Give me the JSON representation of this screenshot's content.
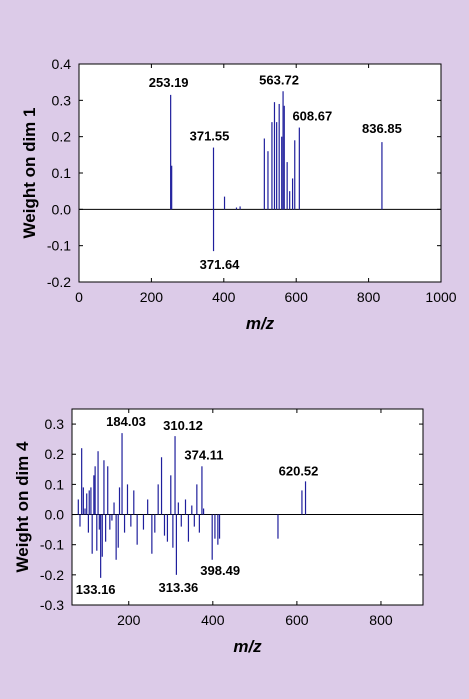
{
  "colors": {
    "background": "#dccbe8",
    "series": "#1f1f9c",
    "axis": "#000000",
    "plot_bg": "#ffffff"
  },
  "chart_data": [
    {
      "type": "bar",
      "title": "",
      "xlabel": "m/z",
      "ylabel": "Weight on dim 1",
      "xlim": [
        0,
        1000
      ],
      "ylim": [
        -0.2,
        0.4
      ],
      "xticks": [
        0,
        200,
        400,
        600,
        800,
        1000
      ],
      "yticks": [
        -0.2,
        -0.1,
        0,
        0.1,
        0.2,
        0.3,
        0.4
      ],
      "grid": false,
      "series": [
        {
          "x": [
            253.19,
            256,
            371.55,
            371.64,
            402,
            435,
            445,
            512,
            522,
            533,
            540,
            546,
            553,
            560,
            563.72,
            567,
            575,
            582,
            590,
            596,
            608.67,
            836.85
          ],
          "values": [
            0.315,
            0.12,
            0.17,
            -0.115,
            0.035,
            0.005,
            0.008,
            0.195,
            0.16,
            0.24,
            0.295,
            0.24,
            0.29,
            0.2,
            0.325,
            0.285,
            0.13,
            0.05,
            0.085,
            0.19,
            0.225,
            0.185
          ]
        }
      ],
      "annotations": [
        {
          "text": "253.19",
          "x": 253.19,
          "y": 0.315
        },
        {
          "text": "371.55",
          "x": 371.55,
          "y": 0.17
        },
        {
          "text": "371.64",
          "x": 371.64,
          "y": -0.115
        },
        {
          "text": "563.72",
          "x": 563.72,
          "y": 0.325
        },
        {
          "text": "608.67",
          "x": 608.67,
          "y": 0.225
        },
        {
          "text": "836.85",
          "x": 836.85,
          "y": 0.185
        }
      ]
    },
    {
      "type": "bar",
      "title": "",
      "xlabel": "m/z",
      "ylabel": "Weight on dim 4",
      "xlim": [
        65,
        900
      ],
      "ylim": [
        -0.3,
        0.35
      ],
      "xticks": [
        200,
        400,
        600,
        800
      ],
      "yticks": [
        -0.3,
        -0.2,
        -0.1,
        0,
        0.1,
        0.2,
        0.3
      ],
      "grid": false,
      "series": [
        {
          "x": [
            80,
            84,
            88,
            92,
            96,
            100,
            104,
            106,
            110,
            113,
            117,
            120,
            124,
            127,
            130,
            133.16,
            137,
            141,
            145,
            150,
            155,
            160,
            165,
            170,
            175,
            178,
            184.03,
            190,
            197,
            205,
            212,
            220,
            235,
            245,
            255,
            262,
            270,
            278,
            285,
            292,
            300,
            305,
            310.12,
            313.36,
            318,
            325,
            335,
            342,
            350,
            356,
            362,
            368,
            374.11,
            378,
            398.49,
            405,
            412,
            416,
            555,
            612,
            620.52
          ],
          "values": [
            0.05,
            -0.04,
            0.22,
            0.09,
            0.02,
            0.07,
            -0.06,
            0.08,
            0.09,
            -0.13,
            0.13,
            0.16,
            -0.12,
            0.21,
            -0.05,
            -0.21,
            -0.14,
            0.18,
            -0.09,
            0.16,
            -0.05,
            -0.02,
            0.04,
            -0.15,
            -0.11,
            0.09,
            0.27,
            -0.06,
            0.1,
            -0.04,
            0.08,
            -0.1,
            -0.05,
            0.05,
            -0.13,
            -0.06,
            0.1,
            0.19,
            -0.07,
            -0.09,
            0.13,
            -0.11,
            0.26,
            -0.2,
            0.04,
            -0.04,
            0.05,
            -0.09,
            0.03,
            -0.04,
            0.1,
            -0.06,
            0.16,
            0.02,
            -0.15,
            -0.08,
            -0.1,
            -0.08,
            -0.08,
            0.08,
            0.11
          ]
        }
      ],
      "annotations": [
        {
          "text": "184.03",
          "x": 184.03,
          "y": 0.27
        },
        {
          "text": "310.12",
          "x": 310.12,
          "y": 0.26
        },
        {
          "text": "374.11",
          "x": 374.11,
          "y": 0.16
        },
        {
          "text": "620.52",
          "x": 620.52,
          "y": 0.11
        },
        {
          "text": "133.16",
          "x": 133.16,
          "y": -0.21
        },
        {
          "text": "313.36",
          "x": 313.36,
          "y": -0.2
        },
        {
          "text": "398.49",
          "x": 398.49,
          "y": -0.15
        }
      ]
    }
  ]
}
